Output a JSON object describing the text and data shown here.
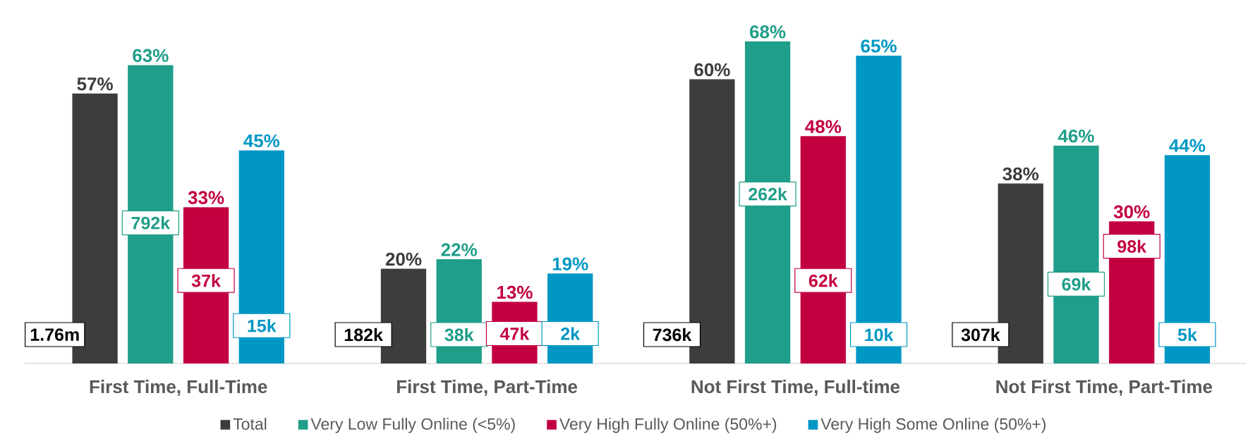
{
  "chart_data": {
    "type": "bar",
    "categories": [
      "First Time, Full-Time",
      "First Time, Part-Time",
      "Not First Time, Full-time",
      "Not First Time, Part-Time"
    ],
    "series": [
      {
        "name": "Total",
        "color": "#3d3d3d",
        "values": [
          57,
          20,
          60,
          38
        ],
        "value_labels": [
          "57%",
          "20%",
          "60%",
          "38%"
        ]
      },
      {
        "name": "Very Low Fully Online (<5%)",
        "color": "#1f9e89",
        "values": [
          63,
          22,
          68,
          46
        ],
        "value_labels": [
          "63%",
          "22%",
          "68%",
          "46%"
        ]
      },
      {
        "name": "Very High Fully Online (50%+)",
        "color": "#c3003f",
        "values": [
          33,
          13,
          48,
          30
        ],
        "value_labels": [
          "33%",
          "13%",
          "48%",
          "30%"
        ]
      },
      {
        "name": "Very High Some Online (50%+)",
        "color": "#0097c4",
        "values": [
          45,
          19,
          65,
          44
        ],
        "value_labels": [
          "45%",
          "19%",
          "65%",
          "44%"
        ]
      }
    ],
    "annotations": [
      "1.76m",
      "792k",
      "37k",
      "15k",
      "182k",
      "38k",
      "47k",
      "2k",
      "736k",
      "262k",
      "62k",
      "10k",
      "307k",
      "69k",
      "98k",
      "5k"
    ],
    "tick_labels": "x",
    "legend": "bottom"
  }
}
